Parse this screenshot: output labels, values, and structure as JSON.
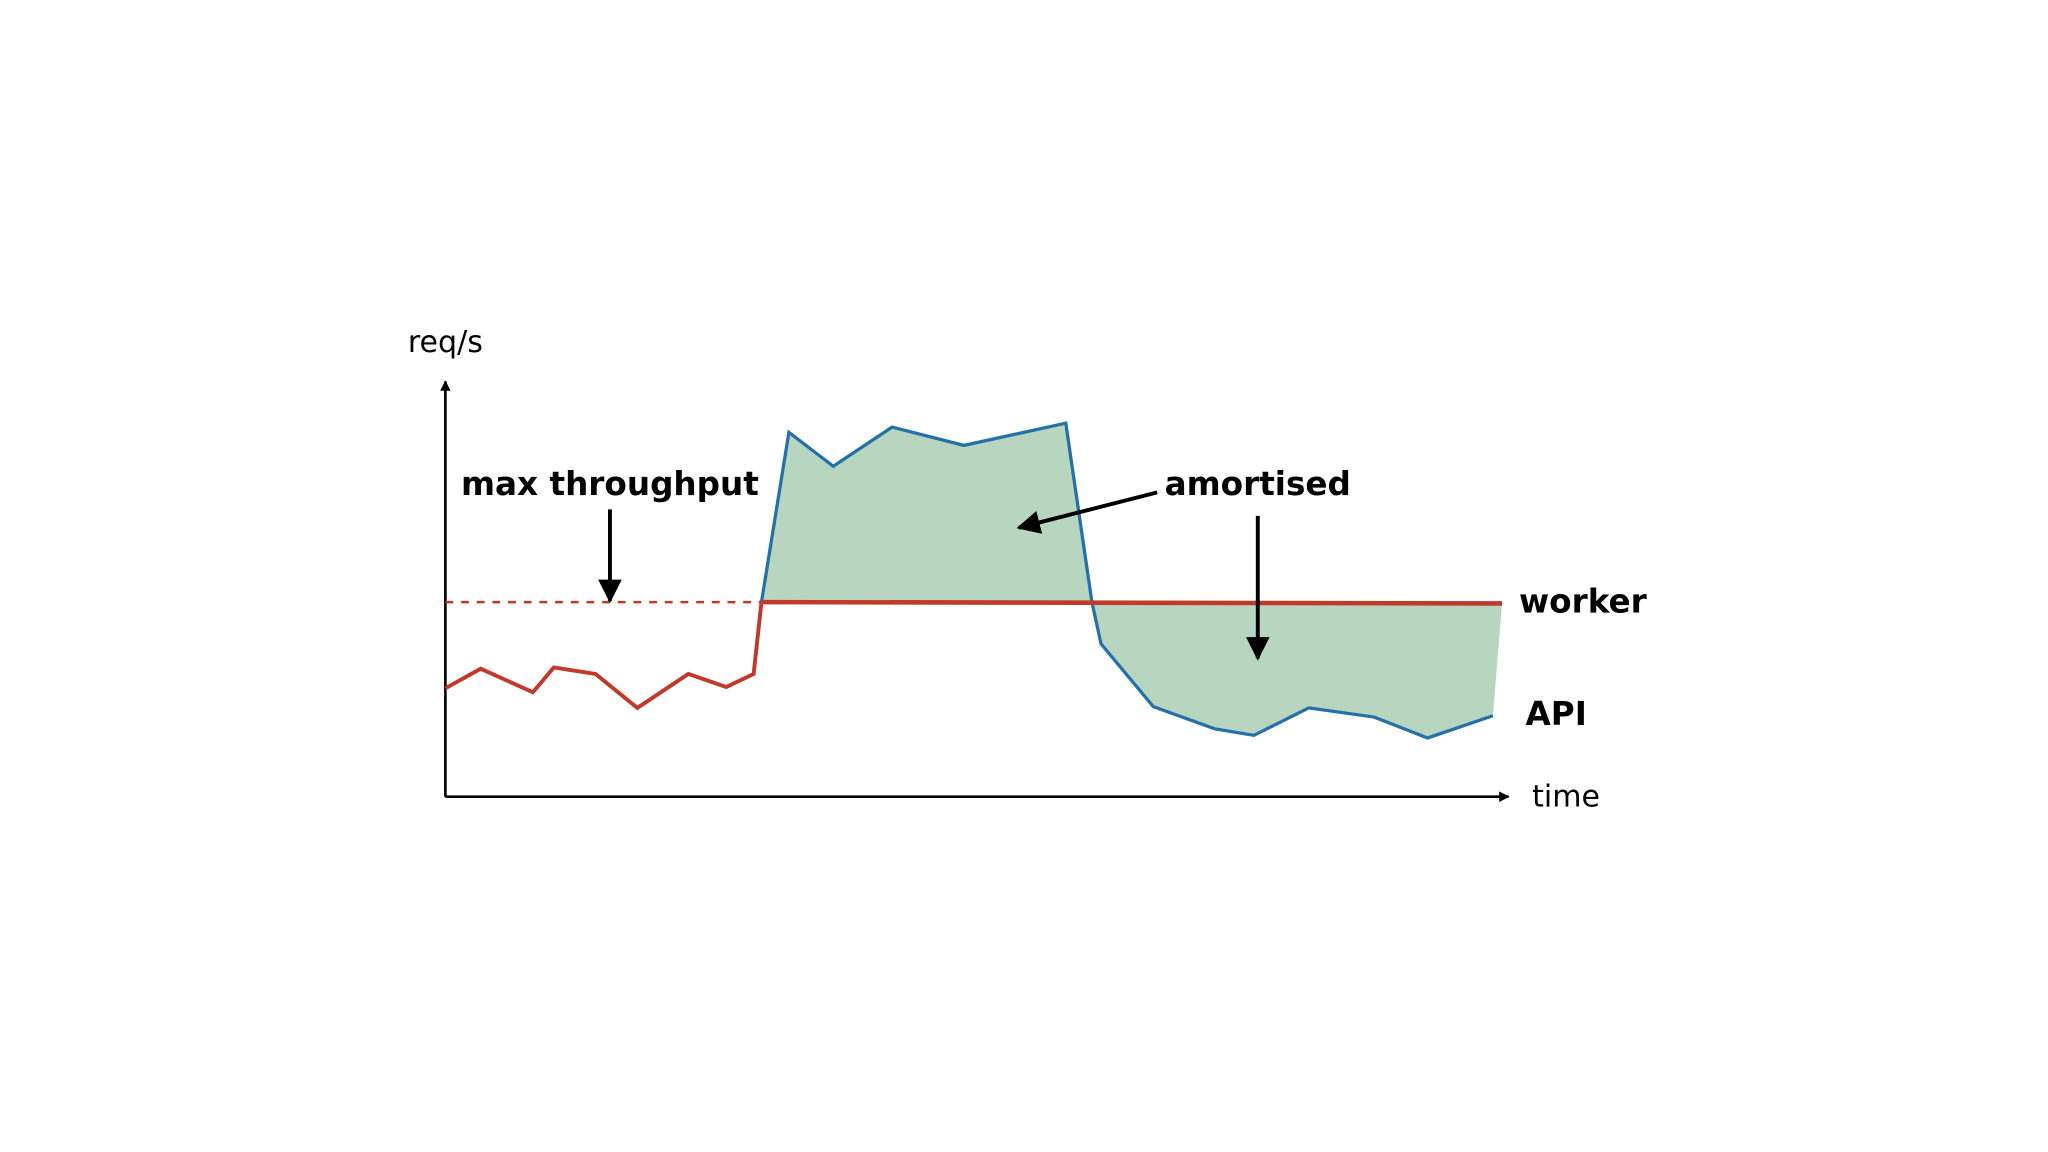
{
  "axes": {
    "y_label": "req/s",
    "x_label": "time"
  },
  "annotations": {
    "max_throughput": "max throughput",
    "amortised": "amortised"
  },
  "lines": {
    "worker": "worker",
    "api": "API"
  }
}
